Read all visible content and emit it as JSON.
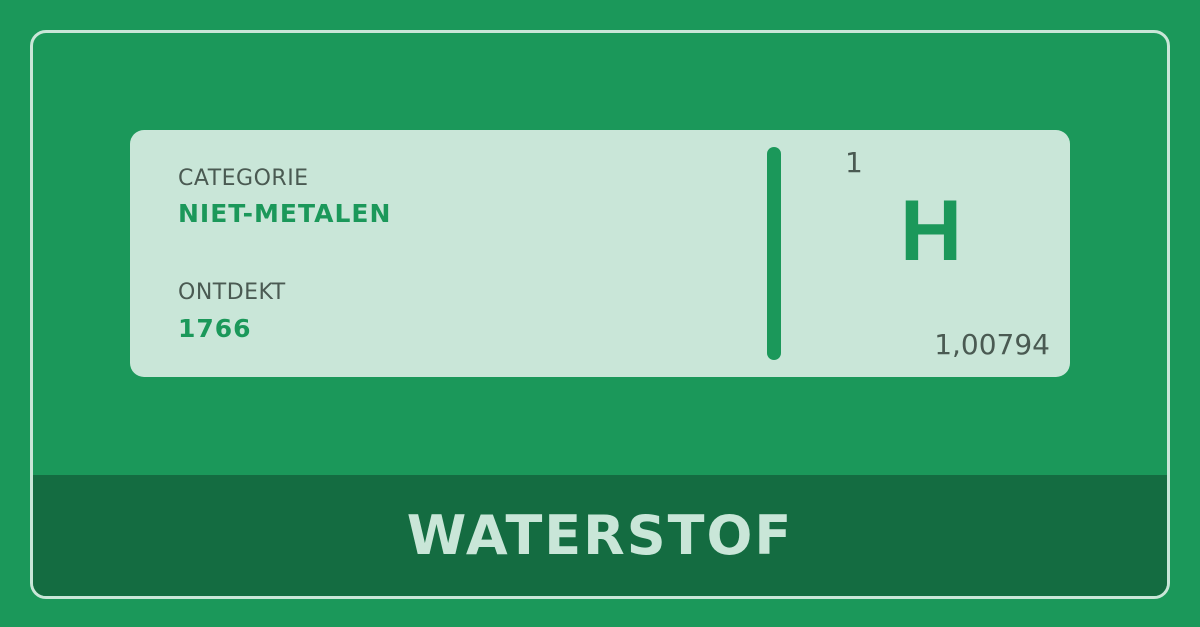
{
  "card": {
    "category_label": "CATEGORIE",
    "category_value": "NIET-METALEN",
    "discovered_label": "ONTDEKT",
    "discovered_value": "1766",
    "atomic_number": "1",
    "symbol": "H",
    "atomic_weight": "1,00794"
  },
  "footer": {
    "element_name": "WATERSTOF"
  },
  "colors": {
    "background": "#1b985a",
    "card": "#c9e6d8",
    "footer": "#146c41",
    "label_text": "#4a5a52",
    "accent": "#1b985a"
  }
}
